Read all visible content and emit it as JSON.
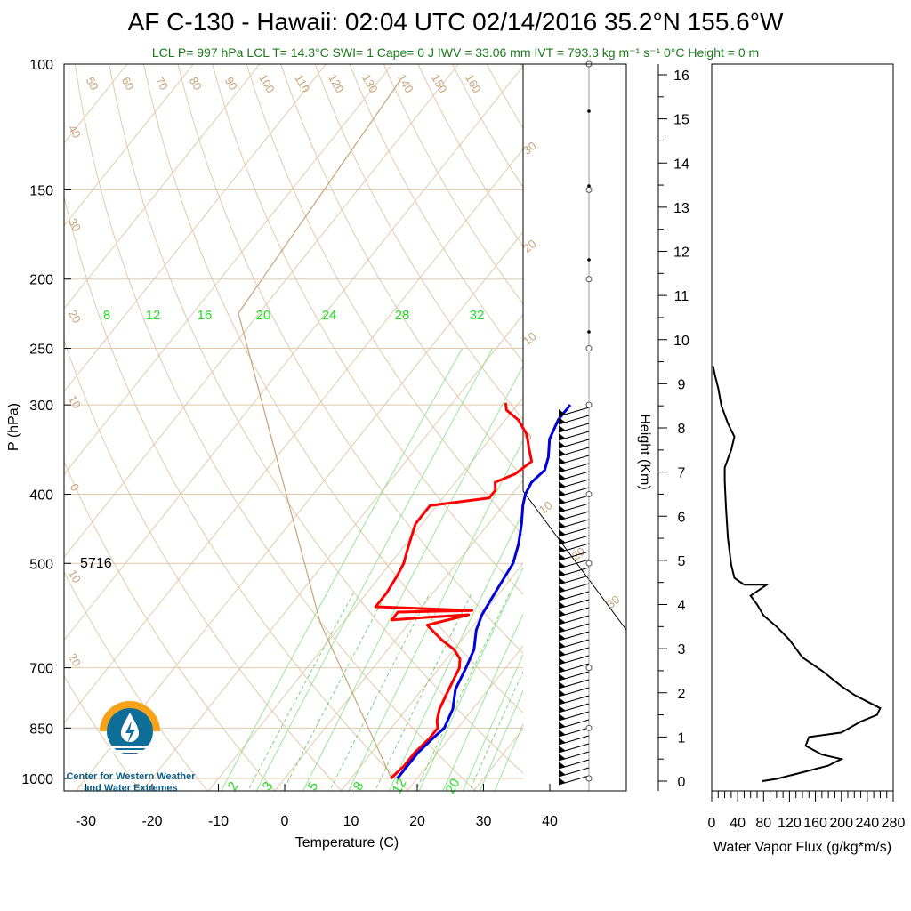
{
  "header": {
    "title": "AF C-130 - Hawaii: 02:04 UTC 02/14/2016  35.2°N 155.6°W",
    "indices": "LCL P= 997 hPa  LCL T= 14.3°C  SWI= 1  Cape= 0 J  IWV = 33.06 mm  IVT = 793.3 kg m⁻¹ s⁻¹  0°C Height = 0 m"
  },
  "skewt": {
    "xlabel": "Temperature (C)",
    "ylabel": "P (hPa)",
    "pressure_ticks": [
      100,
      150,
      200,
      250,
      300,
      400,
      500,
      700,
      850,
      1000
    ],
    "temp_ticks": [
      -30,
      -20,
      -10,
      0,
      10,
      20,
      30,
      40
    ],
    "height_500_label": "5716",
    "mixing_ratio_labels_top": [
      "8",
      "12",
      "16",
      "20",
      "24",
      "28",
      "32"
    ],
    "mixing_ratio_labels_bottom": [
      "2",
      "3",
      "5",
      "8",
      "12",
      "20"
    ],
    "dry_adiabat_labels": [
      "50",
      "60",
      "70",
      "80",
      "90",
      "100",
      "110",
      "120",
      "130",
      "140",
      "150",
      "160"
    ],
    "isotherm_labels": [
      "30",
      "20",
      "10",
      "0",
      "10",
      "20",
      "30"
    ],
    "left_labels": [
      "40",
      "30",
      "20",
      "10",
      "0",
      "10",
      "20"
    ]
  },
  "height_axis": {
    "label": "Height (Km)",
    "ticks": [
      0,
      1,
      2,
      3,
      4,
      5,
      6,
      7,
      8,
      9,
      10,
      11,
      12,
      13,
      14,
      15,
      16
    ]
  },
  "flux_axis": {
    "xlabel": "Water Vapor Flux (g/kg*m/s)",
    "ticks": [
      0,
      40,
      80,
      120,
      160,
      200,
      240,
      280
    ]
  },
  "logo": {
    "line1": "Center for Western Weather",
    "line2": "and Water Extremes"
  },
  "colors": {
    "temperature": "#ff0000",
    "dewpoint_or_tv": "#0000dd",
    "mixing_ratio": "#22dd22",
    "adiabat": "#c9a37a",
    "flux": "#000000"
  },
  "chart_data": [
    {
      "type": "line",
      "name": "skew-t",
      "x_unit": "C",
      "y_unit": "hPa",
      "series": [
        {
          "name": "temperature",
          "points": [
            [
              16,
              1000
            ],
            [
              16.5,
              960
            ],
            [
              16.5,
              920
            ],
            [
              17,
              880
            ],
            [
              17,
              850
            ],
            [
              16,
              830
            ],
            [
              15,
              800
            ],
            [
              14,
              750
            ],
            [
              13,
              700
            ],
            [
              12,
              680
            ],
            [
              10,
              660
            ],
            [
              7,
              640
            ],
            [
              5,
              625
            ],
            [
              3,
              610
            ],
            [
              8,
              590
            ],
            [
              2,
              595
            ],
            [
              -3,
              600
            ],
            [
              -3,
              585
            ],
            [
              8,
              582
            ],
            [
              -7,
              575
            ],
            [
              -7,
              550
            ],
            [
              -7.5,
              520
            ],
            [
              -8,
              500
            ],
            [
              -9,
              480
            ],
            [
              -10,
              460
            ],
            [
              -11,
              440
            ],
            [
              -11,
              415
            ],
            [
              -3,
              405
            ],
            [
              -3,
              395
            ],
            [
              -4,
              385
            ],
            [
              -2,
              375
            ],
            [
              -1,
              360
            ],
            [
              -3,
              345
            ],
            [
              -5,
              330
            ],
            [
              -8,
              315
            ],
            [
              -11,
              305
            ],
            [
              -12,
              298
            ]
          ]
        },
        {
          "name": "dewpoint",
          "points": [
            [
              17,
              1000
            ],
            [
              17,
              960
            ],
            [
              17,
              920
            ],
            [
              17.5,
              880
            ],
            [
              18,
              850
            ],
            [
              17,
              800
            ],
            [
              15,
              750
            ],
            [
              14,
              700
            ],
            [
              13,
              660
            ],
            [
              11,
              620
            ],
            [
              10,
              590
            ],
            [
              9.5,
              560
            ],
            [
              9,
              530
            ],
            [
              8.5,
              500
            ],
            [
              7,
              470
            ],
            [
              5,
              440
            ],
            [
              3,
              415
            ],
            [
              2,
              400
            ],
            [
              1.5,
              385
            ],
            [
              2,
              370
            ],
            [
              1,
              355
            ],
            [
              -1,
              335
            ],
            [
              -2,
              315
            ],
            [
              -2,
              305
            ],
            [
              -2,
              300
            ]
          ]
        }
      ]
    },
    {
      "type": "line",
      "name": "water-vapor-flux",
      "x_unit": "g/kg*m/s",
      "y_unit": "km",
      "series": [
        {
          "name": "flux",
          "points": [
            [
              78,
              0
            ],
            [
              100,
              0.05
            ],
            [
              140,
              0.2
            ],
            [
              180,
              0.35
            ],
            [
              200,
              0.5
            ],
            [
              170,
              0.6
            ],
            [
              145,
              0.8
            ],
            [
              150,
              1.0
            ],
            [
              200,
              1.1
            ],
            [
              230,
              1.35
            ],
            [
              255,
              1.5
            ],
            [
              260,
              1.65
            ],
            [
              240,
              1.8
            ],
            [
              220,
              1.95
            ],
            [
              200,
              2.15
            ],
            [
              170,
              2.5
            ],
            [
              140,
              2.8
            ],
            [
              120,
              3.2
            ],
            [
              100,
              3.5
            ],
            [
              80,
              3.75
            ],
            [
              70,
              4.0
            ],
            [
              60,
              4.2
            ],
            [
              85,
              4.45
            ],
            [
              50,
              4.45
            ],
            [
              35,
              4.6
            ],
            [
              30,
              4.9
            ],
            [
              25,
              5.5
            ],
            [
              22,
              6.2
            ],
            [
              20,
              6.8
            ],
            [
              20,
              7.1
            ],
            [
              25,
              7.3
            ],
            [
              30,
              7.5
            ],
            [
              35,
              7.8
            ],
            [
              25,
              8.1
            ],
            [
              15,
              8.5
            ],
            [
              10,
              8.9
            ],
            [
              5,
              9.2
            ],
            [
              2,
              9.4
            ]
          ]
        }
      ]
    }
  ]
}
